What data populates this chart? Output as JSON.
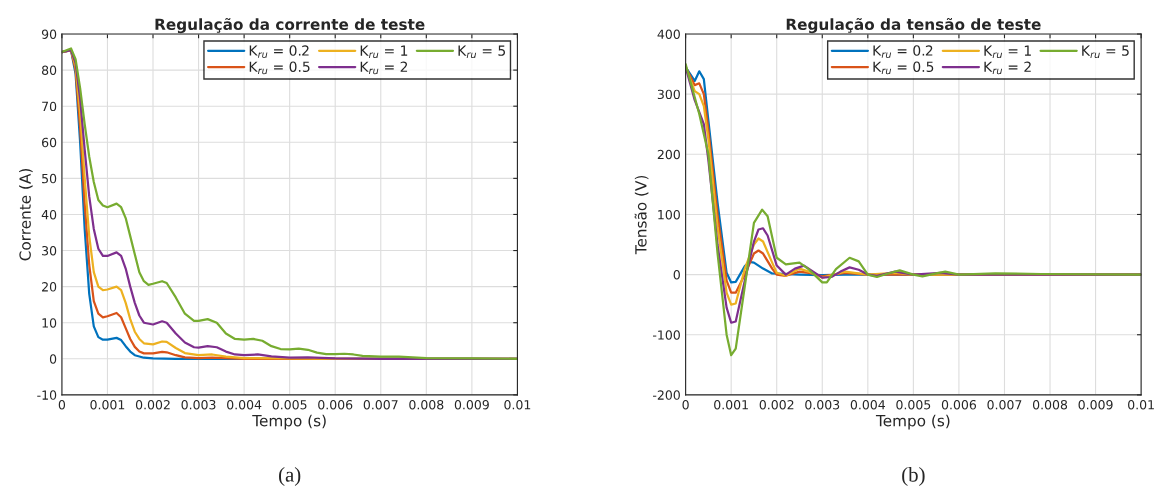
{
  "chart_data": [
    {
      "type": "line",
      "title": "Regulação da corrente de teste",
      "xlabel": "Tempo (s)",
      "ylabel": "Corrente (A)",
      "xlim": [
        0,
        0.01
      ],
      "ylim": [
        -10,
        90
      ],
      "xticks": [
        0,
        0.001,
        0.002,
        0.003,
        0.004,
        0.005,
        0.006,
        0.007,
        0.008,
        0.009,
        0.01
      ],
      "yticks": [
        -10,
        0,
        10,
        20,
        30,
        40,
        50,
        60,
        70,
        80,
        90
      ],
      "grid": true,
      "legend": "top right",
      "line_style": "solid",
      "marker": "none",
      "annotations": [
        "(a)"
      ],
      "series": [
        {
          "name": "K$_{ru}$ = 0.2",
          "color": "#0072bd",
          "x": [
            0,
            0.0002,
            0.0003,
            0.0004,
            0.0005,
            0.0006,
            0.0007,
            0.0008,
            0.0009,
            0.001,
            0.0012,
            0.0013,
            0.0014,
            0.0015,
            0.0016,
            0.0018,
            0.002,
            0.0025,
            0.01
          ],
          "values": [
            85,
            85.5,
            79,
            60,
            36,
            18,
            9,
            6,
            5.3,
            5.3,
            5.8,
            5.2,
            3.5,
            2,
            1,
            0.3,
            0.1,
            0,
            0
          ]
        },
        {
          "name": "K$_{ru}$ = 0.5",
          "color": "#d95319",
          "x": [
            0,
            0.0002,
            0.0003,
            0.0004,
            0.0005,
            0.0006,
            0.0007,
            0.0008,
            0.0009,
            0.001,
            0.0012,
            0.0013,
            0.0014,
            0.0015,
            0.0016,
            0.0017,
            0.0018,
            0.002,
            0.0022,
            0.0023,
            0.0025,
            0.0027,
            0.003,
            0.0033,
            0.004,
            0.01
          ],
          "values": [
            85,
            85.5,
            80,
            64,
            43,
            26,
            16,
            12.5,
            11.5,
            11.8,
            12.7,
            11.5,
            8.5,
            5.5,
            3.3,
            2,
            1.5,
            1.5,
            1.9,
            1.8,
            1,
            0.4,
            0.2,
            0.3,
            0,
            0
          ]
        },
        {
          "name": "K$_{ru}$ = 1",
          "color": "#edb120",
          "x": [
            0,
            0.0002,
            0.0003,
            0.0004,
            0.0005,
            0.0006,
            0.0007,
            0.0008,
            0.0009,
            0.001,
            0.0012,
            0.0013,
            0.0014,
            0.0015,
            0.0016,
            0.0017,
            0.0018,
            0.002,
            0.0022,
            0.0023,
            0.0025,
            0.0027,
            0.003,
            0.0033,
            0.0036,
            0.004,
            0.005,
            0.006,
            0.01
          ],
          "values": [
            85,
            85.5,
            81,
            68,
            50,
            34,
            24,
            20,
            19,
            19.2,
            20,
            19,
            15.5,
            11,
            7.5,
            5.5,
            4.3,
            4,
            4.8,
            4.7,
            3,
            1.6,
            1,
            1.2,
            0.6,
            0.2,
            0.1,
            0,
            0
          ]
        },
        {
          "name": "K$_{ru}$ = 2",
          "color": "#7e2f8e",
          "x": [
            0,
            0.0002,
            0.0003,
            0.0004,
            0.0005,
            0.0006,
            0.0007,
            0.0008,
            0.0009,
            0.001,
            0.0012,
            0.0013,
            0.0014,
            0.0015,
            0.0016,
            0.0017,
            0.0018,
            0.002,
            0.0022,
            0.0023,
            0.0025,
            0.0027,
            0.0029,
            0.003,
            0.0032,
            0.0034,
            0.0036,
            0.0038,
            0.004,
            0.0043,
            0.0046,
            0.005,
            0.0054,
            0.006,
            0.007,
            0.008,
            0.01
          ],
          "values": [
            85,
            85.5,
            82,
            72,
            58,
            45,
            36,
            30.5,
            28.5,
            28.5,
            29.5,
            28.5,
            25,
            20,
            15.5,
            12,
            10,
            9.5,
            10.4,
            10,
            7,
            4.5,
            3.2,
            3.1,
            3.5,
            3.2,
            2,
            1.2,
            1,
            1.2,
            0.7,
            0.3,
            0.4,
            0.1,
            0,
            0,
            0
          ]
        },
        {
          "name": "K$_{ru}$ = 5",
          "color": "#77ac30",
          "x": [
            0,
            0.0002,
            0.0003,
            0.0004,
            0.0005,
            0.0006,
            0.0007,
            0.0008,
            0.0009,
            0.001,
            0.0012,
            0.0013,
            0.0014,
            0.0015,
            0.0016,
            0.0017,
            0.0018,
            0.0019,
            0.002,
            0.0022,
            0.0023,
            0.0025,
            0.0027,
            0.0029,
            0.003,
            0.0032,
            0.0034,
            0.0036,
            0.0038,
            0.004,
            0.0042,
            0.0044,
            0.0046,
            0.0048,
            0.005,
            0.0052,
            0.0054,
            0.0056,
            0.0058,
            0.006,
            0.0062,
            0.0064,
            0.0066,
            0.007,
            0.0074,
            0.008,
            0.009,
            0.01
          ],
          "values": [
            85,
            86,
            83,
            75,
            65,
            56,
            49,
            44,
            42.5,
            42,
            43,
            42,
            39,
            34,
            29,
            24,
            21.5,
            20.5,
            20.8,
            21.5,
            21,
            17,
            12.5,
            10.5,
            10.5,
            11,
            10,
            7,
            5.5,
            5.3,
            5.5,
            5,
            3.5,
            2.7,
            2.6,
            2.8,
            2.5,
            1.7,
            1.3,
            1.3,
            1.4,
            1.2,
            0.8,
            0.6,
            0.6,
            0.2,
            0.1,
            0
          ]
        }
      ]
    },
    {
      "type": "line",
      "title": "Regulação da tensão de teste",
      "xlabel": "Tempo (s)",
      "ylabel": "Tensão (V)",
      "xlim": [
        0,
        0.01
      ],
      "ylim": [
        -200,
        400
      ],
      "xticks": [
        0,
        0.001,
        0.002,
        0.003,
        0.004,
        0.005,
        0.006,
        0.007,
        0.008,
        0.009,
        0.01
      ],
      "yticks": [
        -200,
        -100,
        0,
        100,
        200,
        300,
        400
      ],
      "grid": true,
      "legend": "top right",
      "line_style": "solid",
      "marker": "none",
      "annotations": [
        "(b)"
      ],
      "series": [
        {
          "name": "K$_{ru}$ = 0.2",
          "color": "#0072bd",
          "x": [
            0,
            0.0002,
            0.0003,
            0.0004,
            0.0005,
            0.0007,
            0.0009,
            0.001,
            0.0011,
            0.0013,
            0.0014,
            0.0015,
            0.0017,
            0.0019,
            0.0025,
            0.003,
            0.0035,
            0.01
          ],
          "values": [
            345,
            322,
            338,
            325,
            256,
            120,
            3,
            -13,
            -12,
            14,
            21,
            20,
            10,
            2,
            0,
            -1,
            0,
            0
          ]
        },
        {
          "name": "K$_{ru}$ = 0.5",
          "color": "#d95319",
          "x": [
            0,
            0.0002,
            0.0003,
            0.0004,
            0.0005,
            0.0007,
            0.0009,
            0.001,
            0.0011,
            0.0013,
            0.0015,
            0.0016,
            0.0017,
            0.0019,
            0.002,
            0.0022,
            0.0025,
            0.0027,
            0.003,
            0.0035,
            0.004,
            0.01
          ],
          "values": [
            345,
            315,
            318,
            300,
            240,
            100,
            -10,
            -30,
            -30,
            0,
            35,
            40,
            35,
            10,
            0,
            -2,
            5,
            3,
            -3,
            3,
            0,
            0
          ]
        },
        {
          "name": "K$_{ru}$ = 1",
          "color": "#edb120",
          "x": [
            0,
            0.0002,
            0.0003,
            0.0004,
            0.0005,
            0.0007,
            0.0009,
            0.001,
            0.0011,
            0.0013,
            0.0015,
            0.0016,
            0.0017,
            0.0019,
            0.002,
            0.0022,
            0.0025,
            0.0027,
            0.003,
            0.0035,
            0.004,
            0.0046,
            0.005,
            0.01
          ],
          "values": [
            345,
            305,
            300,
            280,
            225,
            80,
            -30,
            -50,
            -48,
            10,
            50,
            60,
            55,
            20,
            3,
            -2,
            10,
            5,
            -5,
            5,
            0,
            3,
            0,
            0
          ]
        },
        {
          "name": "K$_{ru}$ = 2",
          "color": "#7e2f8e",
          "x": [
            0,
            0.0002,
            0.0003,
            0.0004,
            0.0005,
            0.0007,
            0.0009,
            0.001,
            0.0011,
            0.0013,
            0.0015,
            0.0016,
            0.0017,
            0.0018,
            0.002,
            0.0022,
            0.0024,
            0.0026,
            0.0028,
            0.003,
            0.0032,
            0.0034,
            0.0036,
            0.0038,
            0.004,
            0.0042,
            0.0046,
            0.005,
            0.0056,
            0.006,
            0.01
          ],
          "values": [
            345,
            290,
            270,
            250,
            190,
            50,
            -55,
            -80,
            -78,
            -10,
            55,
            75,
            77,
            65,
            15,
            0,
            10,
            15,
            5,
            -5,
            -4,
            5,
            12,
            8,
            0,
            -2,
            5,
            0,
            3,
            0,
            0
          ]
        },
        {
          "name": "K$_{ru}$ = 5",
          "color": "#77ac30",
          "x": [
            0,
            0.0003,
            0.0005,
            0.0007,
            0.0009,
            0.001,
            0.0011,
            0.0013,
            0.0015,
            0.00168,
            0.0018,
            0.002,
            0.0022,
            0.0025,
            0.0027,
            0.003,
            0.0031,
            0.0033,
            0.0036,
            0.0038,
            0.004,
            0.0042,
            0.0045,
            0.0047,
            0.005,
            0.0052,
            0.0055,
            0.0057,
            0.006,
            0.0068,
            0.0078,
            0.01
          ],
          "values": [
            350,
            267,
            200,
            36,
            -100,
            -134,
            -123,
            -19,
            86,
            108,
            97,
            28,
            17,
            20,
            9,
            -13,
            -13,
            9,
            28,
            22,
            0,
            -4,
            3,
            7,
            0,
            -3,
            2,
            5,
            0,
            2,
            1,
            0
          ]
        }
      ]
    }
  ]
}
